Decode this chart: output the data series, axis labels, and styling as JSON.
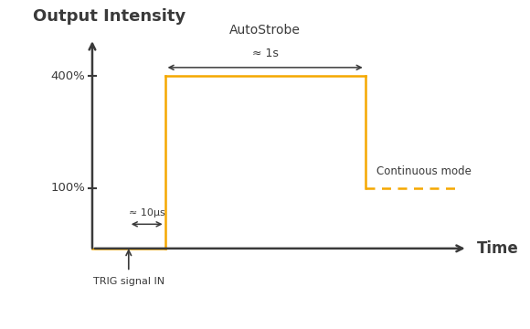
{
  "title": "Output Intensity",
  "xlabel": "Time",
  "ylabel_100": "100%",
  "ylabel_400": "400%",
  "axis_color": "#3a3a3a",
  "orange_color": "#F5A800",
  "background_color": "#ffffff",
  "trig_label": "TRIG signal IN",
  "autostrobe_label": "AutoStrobe",
  "approx_1s_label": "≈ 1s",
  "approx_10us_label": "≈ 10μs",
  "continuous_label": "Continuous mode",
  "font_color": "#3a3a3a",
  "x_origin": 1.5,
  "x_trig": 2.3,
  "x_rise": 3.1,
  "x_fall": 7.5,
  "x_end": 9.6,
  "y_base": 0.5,
  "y_100": 1.8,
  "y_400": 4.2,
  "y_axis_top": 5.0,
  "xlim_min": -0.5,
  "xlim_max": 11.0,
  "ylim_min": -1.2,
  "ylim_max": 5.8
}
